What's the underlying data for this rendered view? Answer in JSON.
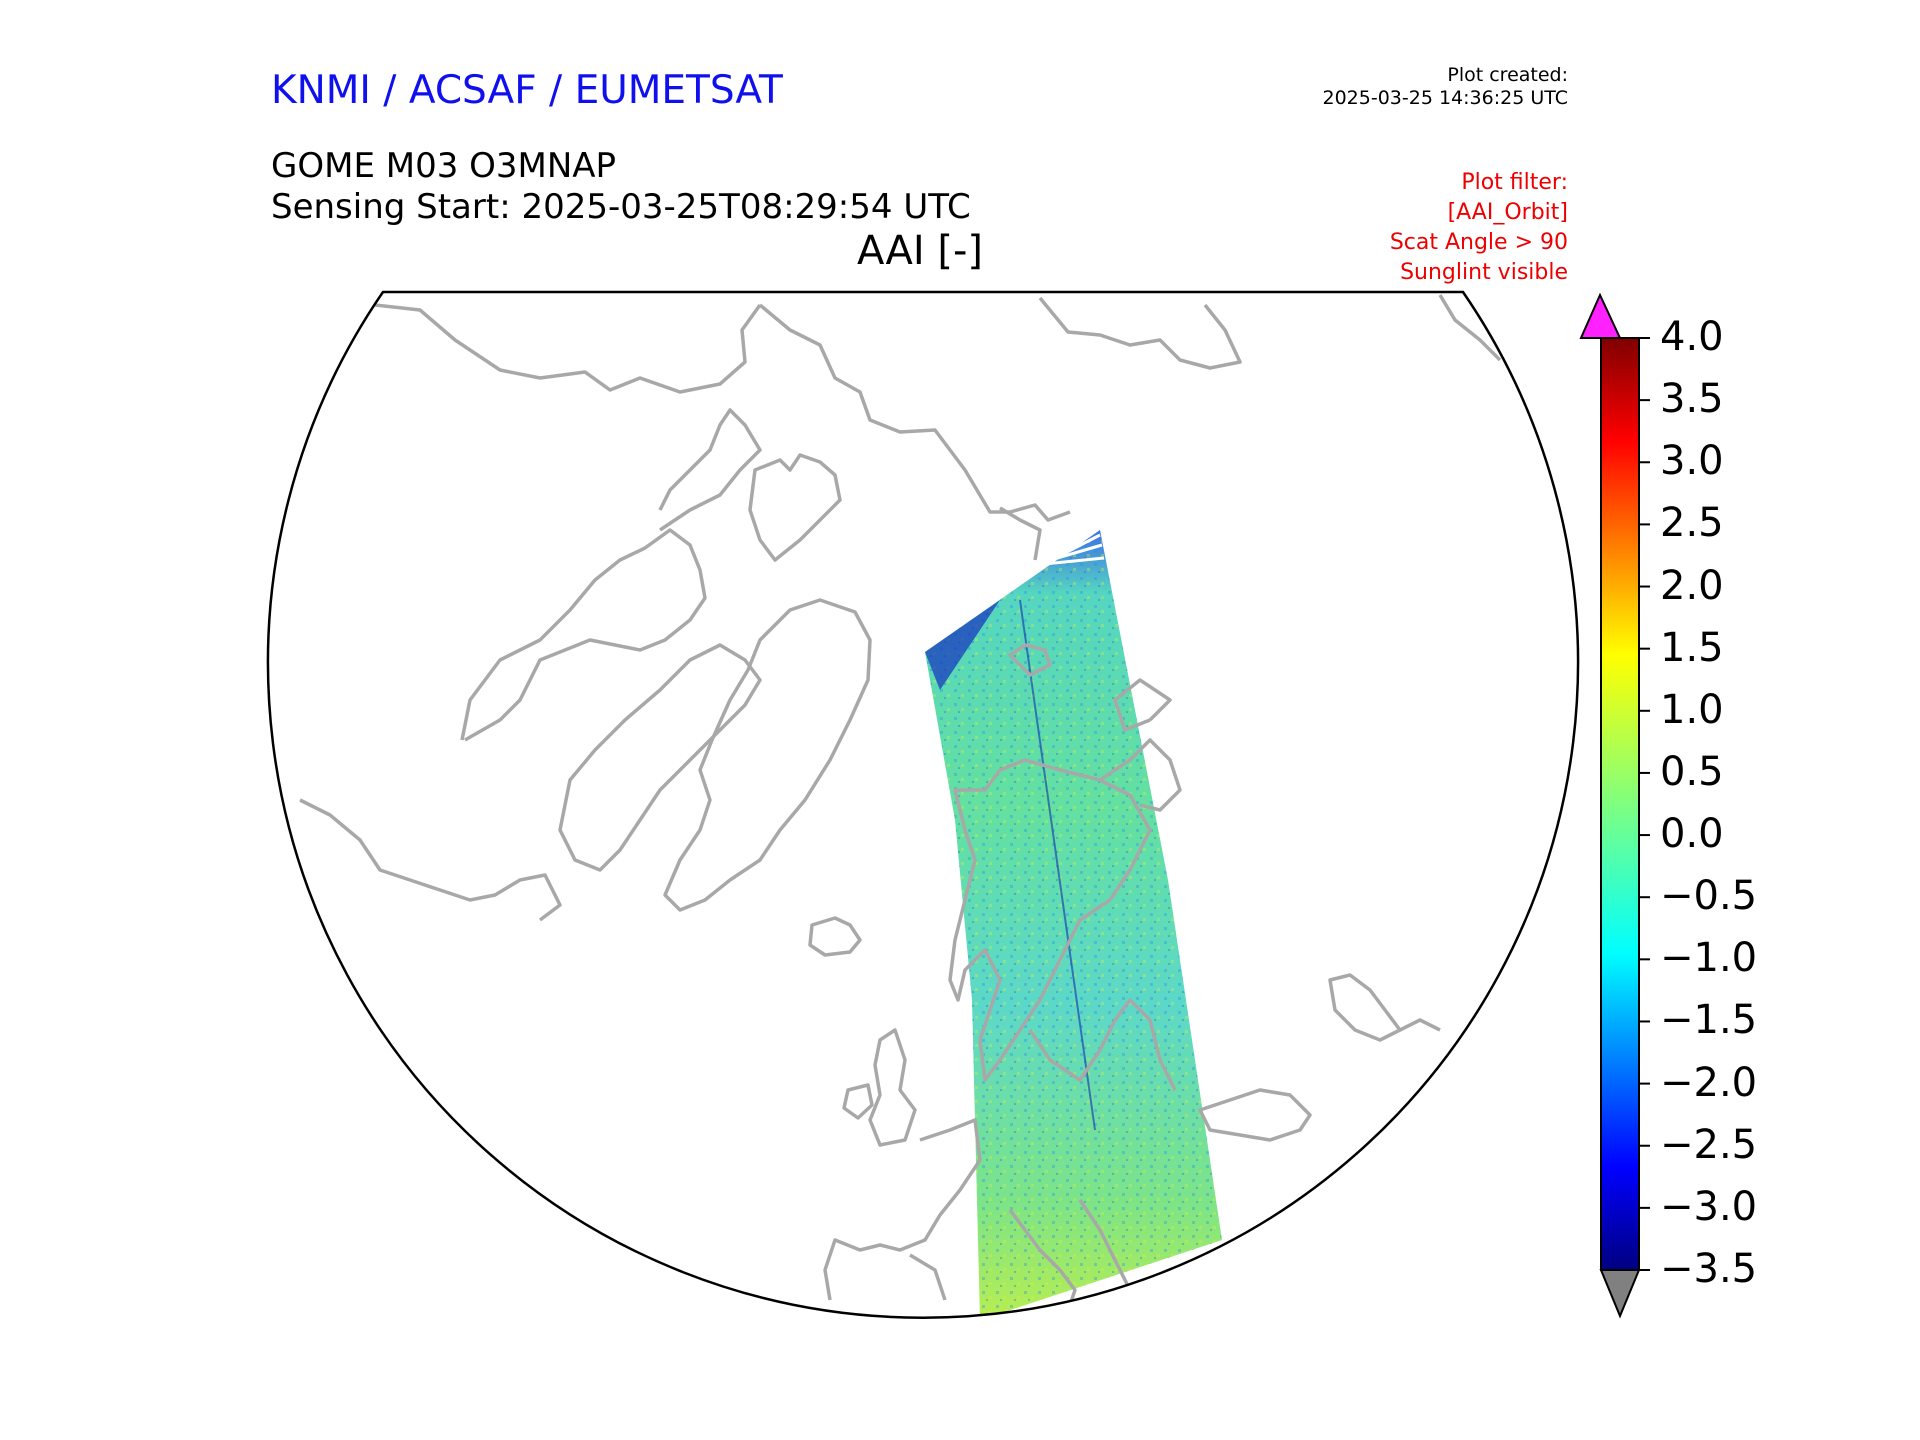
{
  "header": {
    "agency": "KNMI / ACSAF / EUMETSAT",
    "plot_created_label": "Plot created:",
    "plot_created_time": "2025-03-25 14:36:25 UTC",
    "product": "GOME M03 O3MNAP",
    "sensing_start": "Sensing Start: 2025-03-25T08:29:54 UTC",
    "variable_title": "AAI [-]"
  },
  "filter": {
    "lines": [
      "Plot filter:",
      "[AAI_Orbit]",
      "Scat Angle > 90",
      "Sunglint visible"
    ],
    "color": "#ee0000"
  },
  "colors": {
    "agency": "#1010ee",
    "coastline": "#a8a8a8",
    "over": "#ff22ff",
    "under": "#808080"
  },
  "colorbar": {
    "min": -3.5,
    "max": 4.0,
    "colormap": "jet",
    "ticks": [
      "4.0",
      "3.5",
      "3.0",
      "2.5",
      "2.0",
      "1.5",
      "1.0",
      "0.5",
      "0.0",
      "−0.5",
      "−1.0",
      "−1.5",
      "−2.0",
      "−2.5",
      "−3.0",
      "−3.5"
    ]
  },
  "map": {
    "projection": "north-polar-stereographic",
    "swath": "single GOME orbit over Scandinavia and Europe",
    "typical_range": [
      -2.5,
      1.5
    ]
  }
}
